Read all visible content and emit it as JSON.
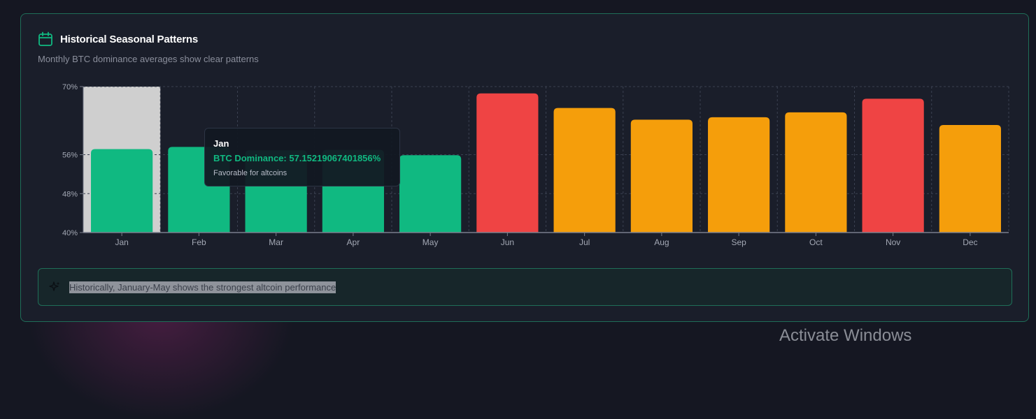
{
  "header": {
    "title": "Historical Seasonal Patterns",
    "subtitle": "Monthly BTC dominance averages show clear patterns",
    "icon": "calendar-icon"
  },
  "chart_data": {
    "type": "bar",
    "title": "",
    "xlabel": "",
    "ylabel": "",
    "categories": [
      "Jan",
      "Feb",
      "Mar",
      "Apr",
      "May",
      "Jun",
      "Jul",
      "Aug",
      "Sep",
      "Oct",
      "Nov",
      "Dec"
    ],
    "values": [
      57.15,
      57.6,
      56.9,
      57.0,
      55.9,
      68.6,
      65.6,
      63.2,
      63.7,
      64.7,
      67.5,
      62.1
    ],
    "bar_colors": [
      "#10b981",
      "#10b981",
      "#10b981",
      "#10b981",
      "#10b981",
      "#ef4444",
      "#f59e0b",
      "#f59e0b",
      "#f59e0b",
      "#f59e0b",
      "#ef4444",
      "#f59e0b"
    ],
    "y_ticks": [
      40,
      48,
      56,
      70
    ],
    "y_tick_labels": [
      "40%",
      "48%",
      "56%",
      "70%"
    ],
    "ylim": [
      40,
      70
    ],
    "grid": true,
    "hovered_category": "Jan"
  },
  "tooltip": {
    "month": "Jan",
    "value_label": "BTC Dominance: 57.15219067401856%",
    "note": "Favorable for altcoins"
  },
  "insight": {
    "icon": "sparkle-icon",
    "text": "Historically, January-May shows the strongest altcoin performance"
  },
  "watermark": {
    "text": "Activate Windows"
  },
  "colors": {
    "favorable": "#10b981",
    "neutral": "#f59e0b",
    "unfavorable": "#ef4444",
    "accent_border": "#1f6e58"
  }
}
